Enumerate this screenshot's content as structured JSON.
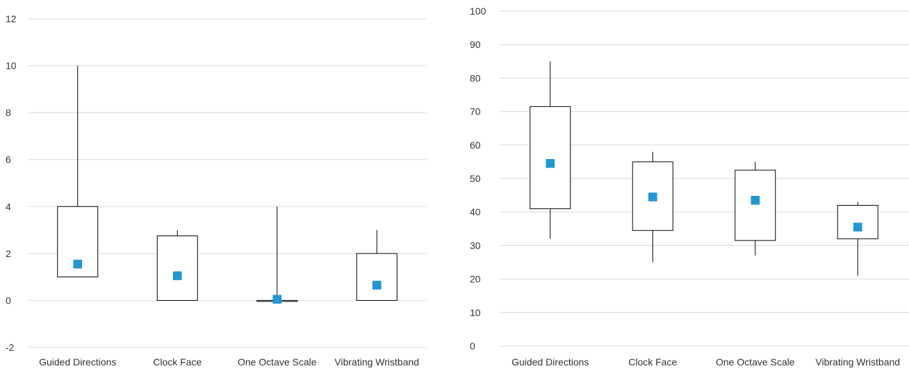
{
  "chart_data": [
    {
      "type": "box",
      "categories": [
        "Guided Directions",
        "Clock Face",
        "One Octave Scale",
        "Vibrating Wristband"
      ],
      "yticks": [
        "-2",
        "0",
        "2",
        "4",
        "6",
        "8",
        "10",
        "12"
      ],
      "ylim": [
        -2,
        12
      ],
      "grid": true,
      "series": [
        {
          "min": [
            1,
            0,
            0,
            0
          ],
          "q1": [
            1,
            0,
            0,
            0
          ],
          "q3": [
            4,
            2.75,
            0,
            2
          ],
          "max": [
            10,
            3,
            4,
            3
          ],
          "mean": [
            1.55,
            1.05,
            0.05,
            0.65
          ]
        }
      ],
      "colors": {
        "mean_marker": "#1f98d6",
        "box_stroke": "#000000",
        "grid": "#d9d9d9"
      }
    },
    {
      "type": "box",
      "categories": [
        "Guided Directions",
        "Clock Face",
        "One Octave Scale",
        "Vibrating Wristband"
      ],
      "yticks": [
        "0",
        "10",
        "20",
        "30",
        "40",
        "50",
        "60",
        "70",
        "80",
        "90",
        "100"
      ],
      "ylim": [
        0,
        100
      ],
      "grid": true,
      "series": [
        {
          "min": [
            32,
            25,
            27,
            21
          ],
          "q1": [
            41,
            34.5,
            31.5,
            32
          ],
          "q3": [
            71.5,
            55,
            52.5,
            42
          ],
          "max": [
            85,
            58,
            55,
            43
          ],
          "mean": [
            54.5,
            44.5,
            43.5,
            35.5
          ]
        }
      ],
      "colors": {
        "mean_marker": "#1f98d6",
        "box_stroke": "#000000",
        "grid": "#d9d9d9"
      }
    }
  ]
}
